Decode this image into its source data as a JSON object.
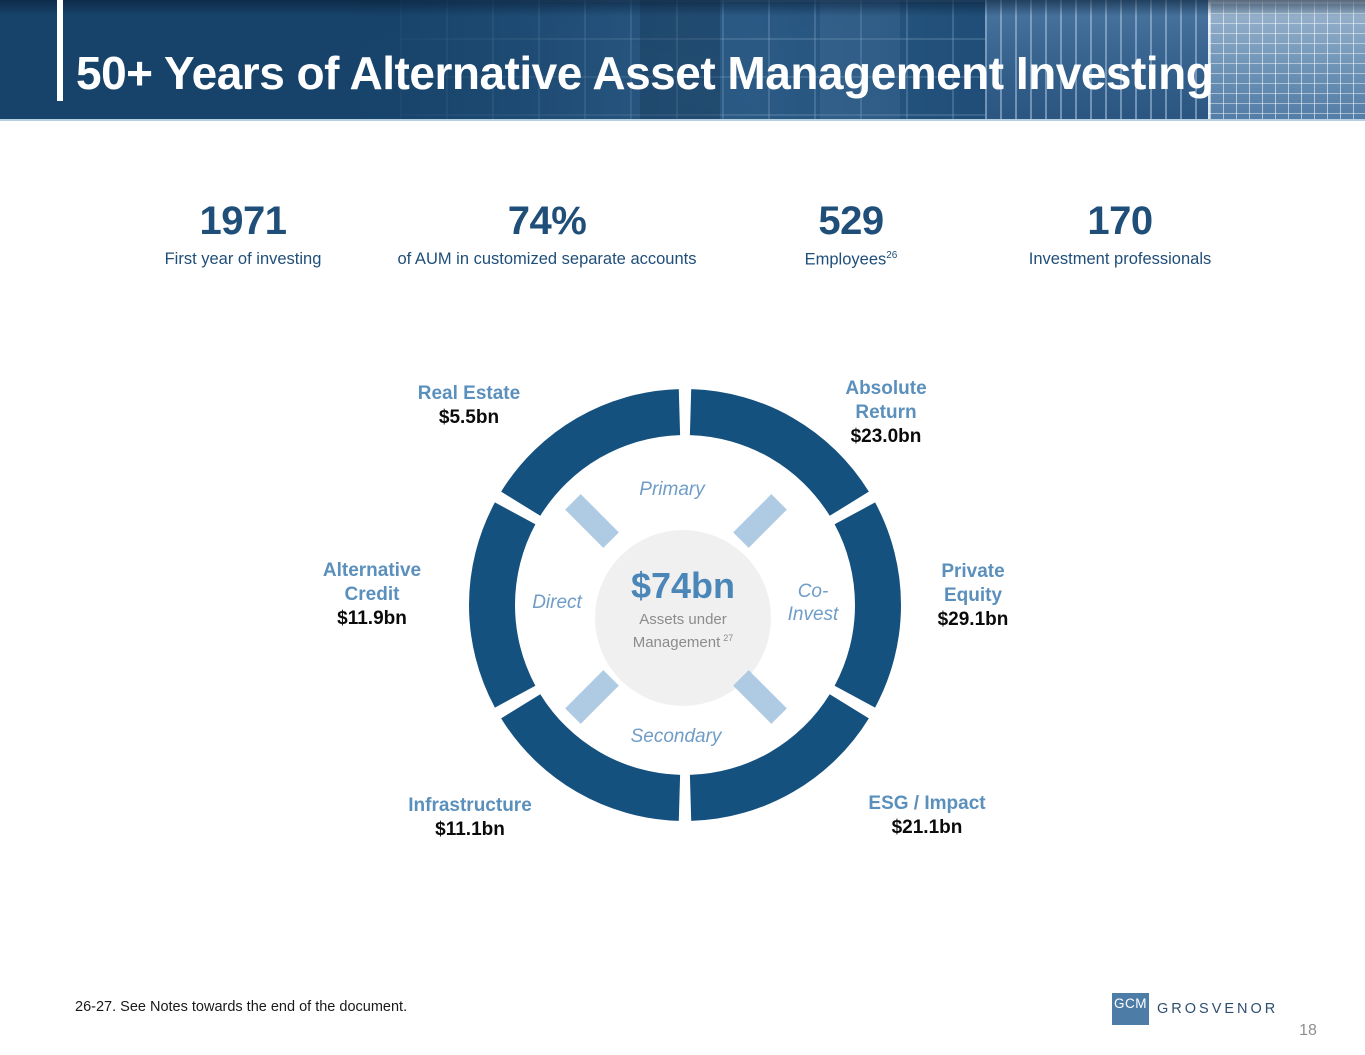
{
  "header": {
    "title": "50+ Years of Alternative Asset Management Investing"
  },
  "stats": [
    {
      "value": "1971",
      "label": "First year of investing"
    },
    {
      "value": "74%",
      "label": "of AUM in customized separate accounts"
    },
    {
      "value": "529",
      "label": "Employees",
      "label_sup": "26"
    },
    {
      "value": "170",
      "label": "Investment professionals"
    }
  ],
  "donut": {
    "center": {
      "aum": "$74bn",
      "caption_line1": "Assets under",
      "caption_line2": "Management",
      "caption_sup": "27"
    },
    "inner_labels": {
      "top": "Primary",
      "left": "Direct",
      "right_line1": "Co-",
      "right_line2": "Invest",
      "bottom": "Secondary"
    },
    "segments": [
      {
        "name": "Real Estate",
        "value": "$5.5bn",
        "position": "top-left"
      },
      {
        "name": "Absolute Return",
        "value": "$23.0bn",
        "position": "top-right"
      },
      {
        "name": "Private Equity",
        "value": "$29.1bn",
        "position": "right"
      },
      {
        "name": "ESG / Impact",
        "value": "$21.1bn",
        "position": "bottom-right"
      },
      {
        "name": "Infrastructure",
        "value": "$11.1bn",
        "position": "bottom-left"
      },
      {
        "name": "Alternative Credit",
        "value": "$11.9bn",
        "position": "left"
      }
    ]
  },
  "footer": {
    "note": "26-27. See Notes towards the end of the document.",
    "logo_gcm": "GCM",
    "logo_grosvenor": "GROSVENOR",
    "page_number": "18"
  },
  "colors": {
    "ring_navy": "#15517F",
    "light_bar": "#AECBE3",
    "center_circle": "#F0F0F0",
    "stat_navy_text": "#1F4E79",
    "label_steel_blue": "#5B90BD",
    "inner_label_blue": "#6F9DC7",
    "aum_blue": "#4A86B8",
    "header_navy": "#1B4A72",
    "logo_square_blue": "#4D7CA7"
  }
}
